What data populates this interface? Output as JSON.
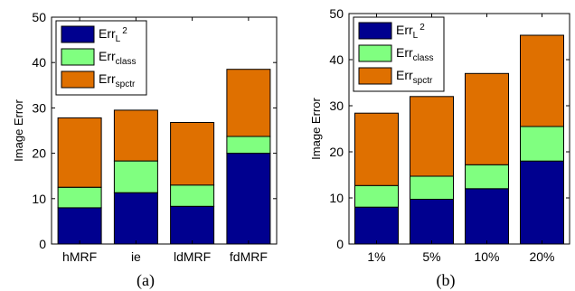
{
  "colors": {
    "err_l2": "#00008f",
    "err_class": "#80ff80",
    "err_spctr": "#df7000",
    "axis": "#000000",
    "background": "#ffffff"
  },
  "chart_data": [
    {
      "type": "bar",
      "stacked": true,
      "caption": "(a)",
      "ylabel": "Image Error",
      "ylim": [
        0,
        50
      ],
      "yticks": [
        "0",
        "10",
        "20",
        "30",
        "40",
        "50"
      ],
      "categories": [
        "hMRF",
        "ie",
        "ldMRF",
        "fdMRF"
      ],
      "legend": {
        "placement": "top-left",
        "entries": [
          {
            "base": "Err",
            "sub": "L",
            "sup": "2"
          },
          {
            "base": "Err",
            "sub": "class",
            "sup": ""
          },
          {
            "base": "Err",
            "sub": "spctr",
            "sup": ""
          }
        ]
      },
      "series": [
        {
          "key": "err_l2",
          "values": [
            8.0,
            11.3,
            8.3,
            20.0
          ]
        },
        {
          "key": "err_class",
          "values": [
            4.5,
            7.0,
            4.7,
            3.7
          ]
        },
        {
          "key": "err_spctr",
          "values": [
            15.3,
            11.2,
            13.8,
            14.8
          ]
        }
      ]
    },
    {
      "type": "bar",
      "stacked": true,
      "caption": "(b)",
      "ylabel": "Image Error",
      "ylim": [
        0,
        50
      ],
      "yticks": [
        "0",
        "10",
        "20",
        "30",
        "40",
        "50"
      ],
      "categories": [
        "1%",
        "5%",
        "10%",
        "20%"
      ],
      "legend": {
        "placement": "top-left",
        "entries": [
          {
            "base": "Err",
            "sub": "L",
            "sup": "2"
          },
          {
            "base": "Err",
            "sub": "class",
            "sup": ""
          },
          {
            "base": "Err",
            "sub": "spctr",
            "sup": ""
          }
        ]
      },
      "series": [
        {
          "key": "err_l2",
          "values": [
            8.0,
            9.7,
            12.0,
            18.0
          ]
        },
        {
          "key": "err_class",
          "values": [
            4.7,
            5.0,
            5.2,
            7.5
          ]
        },
        {
          "key": "err_spctr",
          "values": [
            15.7,
            17.3,
            19.8,
            19.8
          ]
        }
      ]
    }
  ]
}
